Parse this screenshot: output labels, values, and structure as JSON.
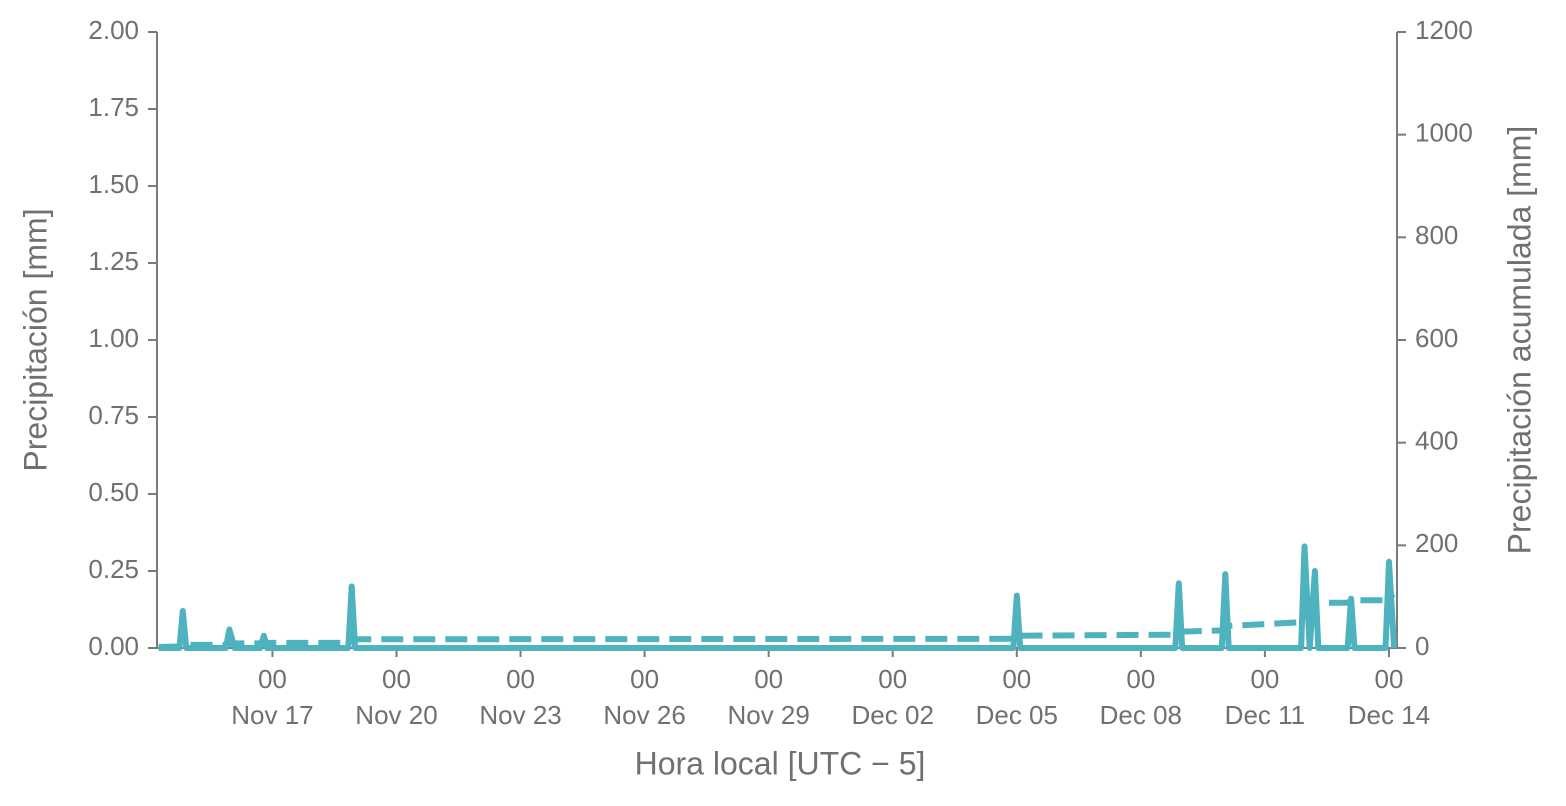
{
  "chart_data": {
    "type": "line",
    "x_label": "Hora local [UTC − 5]",
    "y_label": "Precipitación [mm]",
    "y2_label": "Precipitación acumulada [mm]",
    "xlim": [
      "Nov 14 05:00",
      "Dec 14 04:40"
    ],
    "xticks": [
      {
        "value": "Nov 17 00:00",
        "label": [
          "00",
          "Nov 17"
        ]
      },
      {
        "value": "Nov 20 00:00",
        "label": [
          "00",
          "Nov 20"
        ]
      },
      {
        "value": "Nov 23 00:00",
        "label": [
          "00",
          "Nov 23"
        ]
      },
      {
        "value": "Nov 26 00:00",
        "label": [
          "00",
          "Nov 26"
        ]
      },
      {
        "value": "Nov 29 00:00",
        "label": [
          "00",
          "Nov 29"
        ]
      },
      {
        "value": "Dec 02 00:00",
        "label": [
          "00",
          "Dec 02"
        ]
      },
      {
        "value": "Dec 05 00:00",
        "label": [
          "00",
          "Dec 05"
        ]
      },
      {
        "value": "Dec 08 00:00",
        "label": [
          "00",
          "Dec 08"
        ]
      },
      {
        "value": "Dec 11 00:00",
        "label": [
          "00",
          "Dec 11"
        ]
      },
      {
        "value": "Dec 14 00:00",
        "label": [
          "00",
          "Dec 14"
        ]
      }
    ],
    "ylim": [
      0,
      2
    ],
    "yticks": [
      {
        "value": 0,
        "label": "0.00"
      },
      {
        "value": 0.25,
        "label": "0.25"
      },
      {
        "value": 0.5,
        "label": "0.50"
      },
      {
        "value": 0.75,
        "label": "0.75"
      },
      {
        "value": 1,
        "label": "1.00"
      },
      {
        "value": 1.25,
        "label": "1.25"
      },
      {
        "value": 1.5,
        "label": "1.50"
      },
      {
        "value": 1.75,
        "label": "1.75"
      },
      {
        "value": 2,
        "label": "2.00"
      }
    ],
    "y2lim": [
      0,
      1200
    ],
    "y2ticks": [
      0,
      200,
      400,
      600,
      800,
      1000,
      1200
    ],
    "x": [
      "Nov 14 06:00",
      "Nov 14 18:00",
      "Nov 14 20:00",
      "Nov 14 22:00",
      "Nov 15 21:00",
      "Nov 15 23:00",
      "Nov 16 02:00",
      "Nov 16 17:00",
      "Nov 16 19:00",
      "Nov 16 21:00",
      "Nov 18 20:00",
      "Nov 18 22:00",
      "Nov 19 00:00",
      "Dec 04 22:00",
      "Dec 05 00:00",
      "Dec 05 02:00",
      "Dec 08 20:00",
      "Dec 08 22:00",
      "Dec 09 00:00",
      "Dec 09 23:00",
      "Dec 10 01:00",
      "Dec 10 03:00",
      "Dec 11 21:00",
      "Dec 11 23:00",
      "Dec 12 02:00",
      "Dec 12 05:00",
      "Dec 12 07:00",
      "Dec 13 00:00",
      "Dec 13 02:00",
      "Dec 13 04:00",
      "Dec 13 22:00",
      "Dec 14 00:00",
      "Dec 14 03:00"
    ],
    "series": [
      {
        "color": "#4fb3bf",
        "dash": false,
        "values": [
          0,
          0,
          0.12,
          0,
          0,
          0.06,
          0,
          0,
          0.04,
          0,
          0,
          0.2,
          0,
          0,
          0.17,
          0,
          0,
          0.21,
          0,
          0,
          0.24,
          0,
          0,
          0.33,
          0,
          0.25,
          0,
          0,
          0.16,
          0,
          0,
          0.28,
          0
        ]
      },
      {
        "color": "#4fb3bf",
        "dash": true,
        "axis": "y2",
        "values": [
          2,
          3,
          5,
          6,
          6,
          8,
          9,
          9,
          10,
          10,
          10,
          15,
          17,
          18,
          22,
          24,
          26,
          30,
          32,
          34,
          40,
          43,
          50,
          60,
          75,
          85,
          88,
          88,
          92,
          93,
          93,
          100,
          105
        ]
      }
    ]
  }
}
